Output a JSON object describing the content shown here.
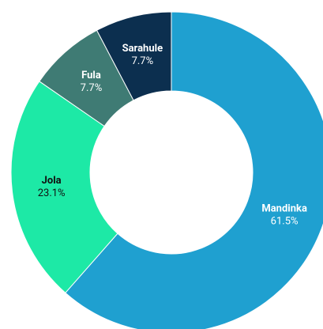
{
  "chart_data": {
    "type": "donut",
    "categories": [
      "Mandinka",
      "Jola",
      "Fula",
      "Sarahule"
    ],
    "values": [
      61.5,
      23.1,
      7.7,
      7.7
    ],
    "value_labels": [
      "61.5%",
      "23.1%",
      "7.7%",
      "7.7%"
    ],
    "colors": [
      "#1fa0d0",
      "#1de9a6",
      "#3f7b74",
      "#0c2f4f"
    ]
  }
}
